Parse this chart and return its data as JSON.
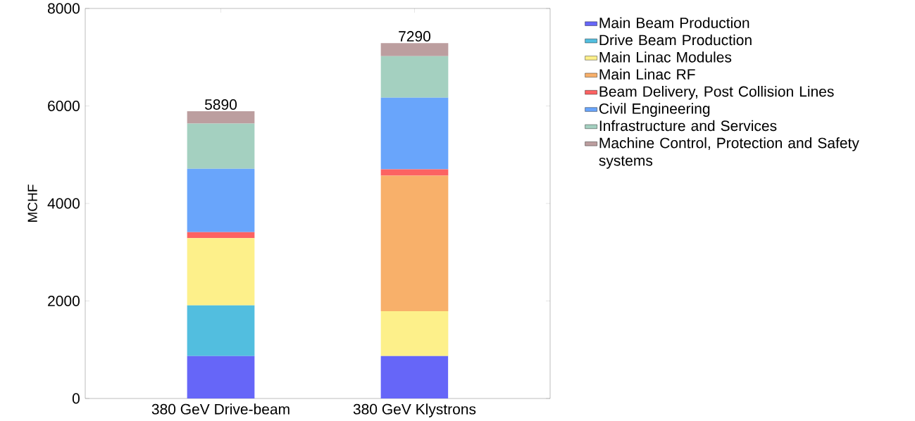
{
  "chart_data": {
    "type": "bar",
    "stacked": true,
    "ylabel": "MCHF",
    "categories": [
      "380 GeV Drive-beam",
      "380 GeV Klystrons"
    ],
    "series": [
      {
        "name": "Main Beam Production",
        "color": "#6666f8",
        "values": [
          870,
          870
        ]
      },
      {
        "name": "Drive Beam Production",
        "color": "#52bedf",
        "values": [
          1040,
          0
        ]
      },
      {
        "name": "Main Linac Modules",
        "color": "#fdf08a",
        "values": [
          1380,
          920
        ]
      },
      {
        "name": "Main Linac RF",
        "color": "#f8b06a",
        "values": [
          0,
          2780
        ]
      },
      {
        "name": "Beam Delivery, Post Collision Lines",
        "color": "#fc6262",
        "values": [
          120,
          130
        ]
      },
      {
        "name": "Civil Engineering",
        "color": "#69a5fb",
        "values": [
          1300,
          1470
        ]
      },
      {
        "name": "Infrastructure and Services",
        "color": "#a4d0c0",
        "values": [
          930,
          850
        ]
      },
      {
        "name": "Machine Control, Protection and Safety systems",
        "color": "#bc9e9f",
        "values": [
          250,
          270
        ]
      }
    ],
    "totals": [
      "5890",
      "7290"
    ],
    "ylim": [
      0,
      8000
    ],
    "yticks": [
      0,
      2000,
      4000,
      6000,
      8000
    ],
    "legend": "right"
  }
}
